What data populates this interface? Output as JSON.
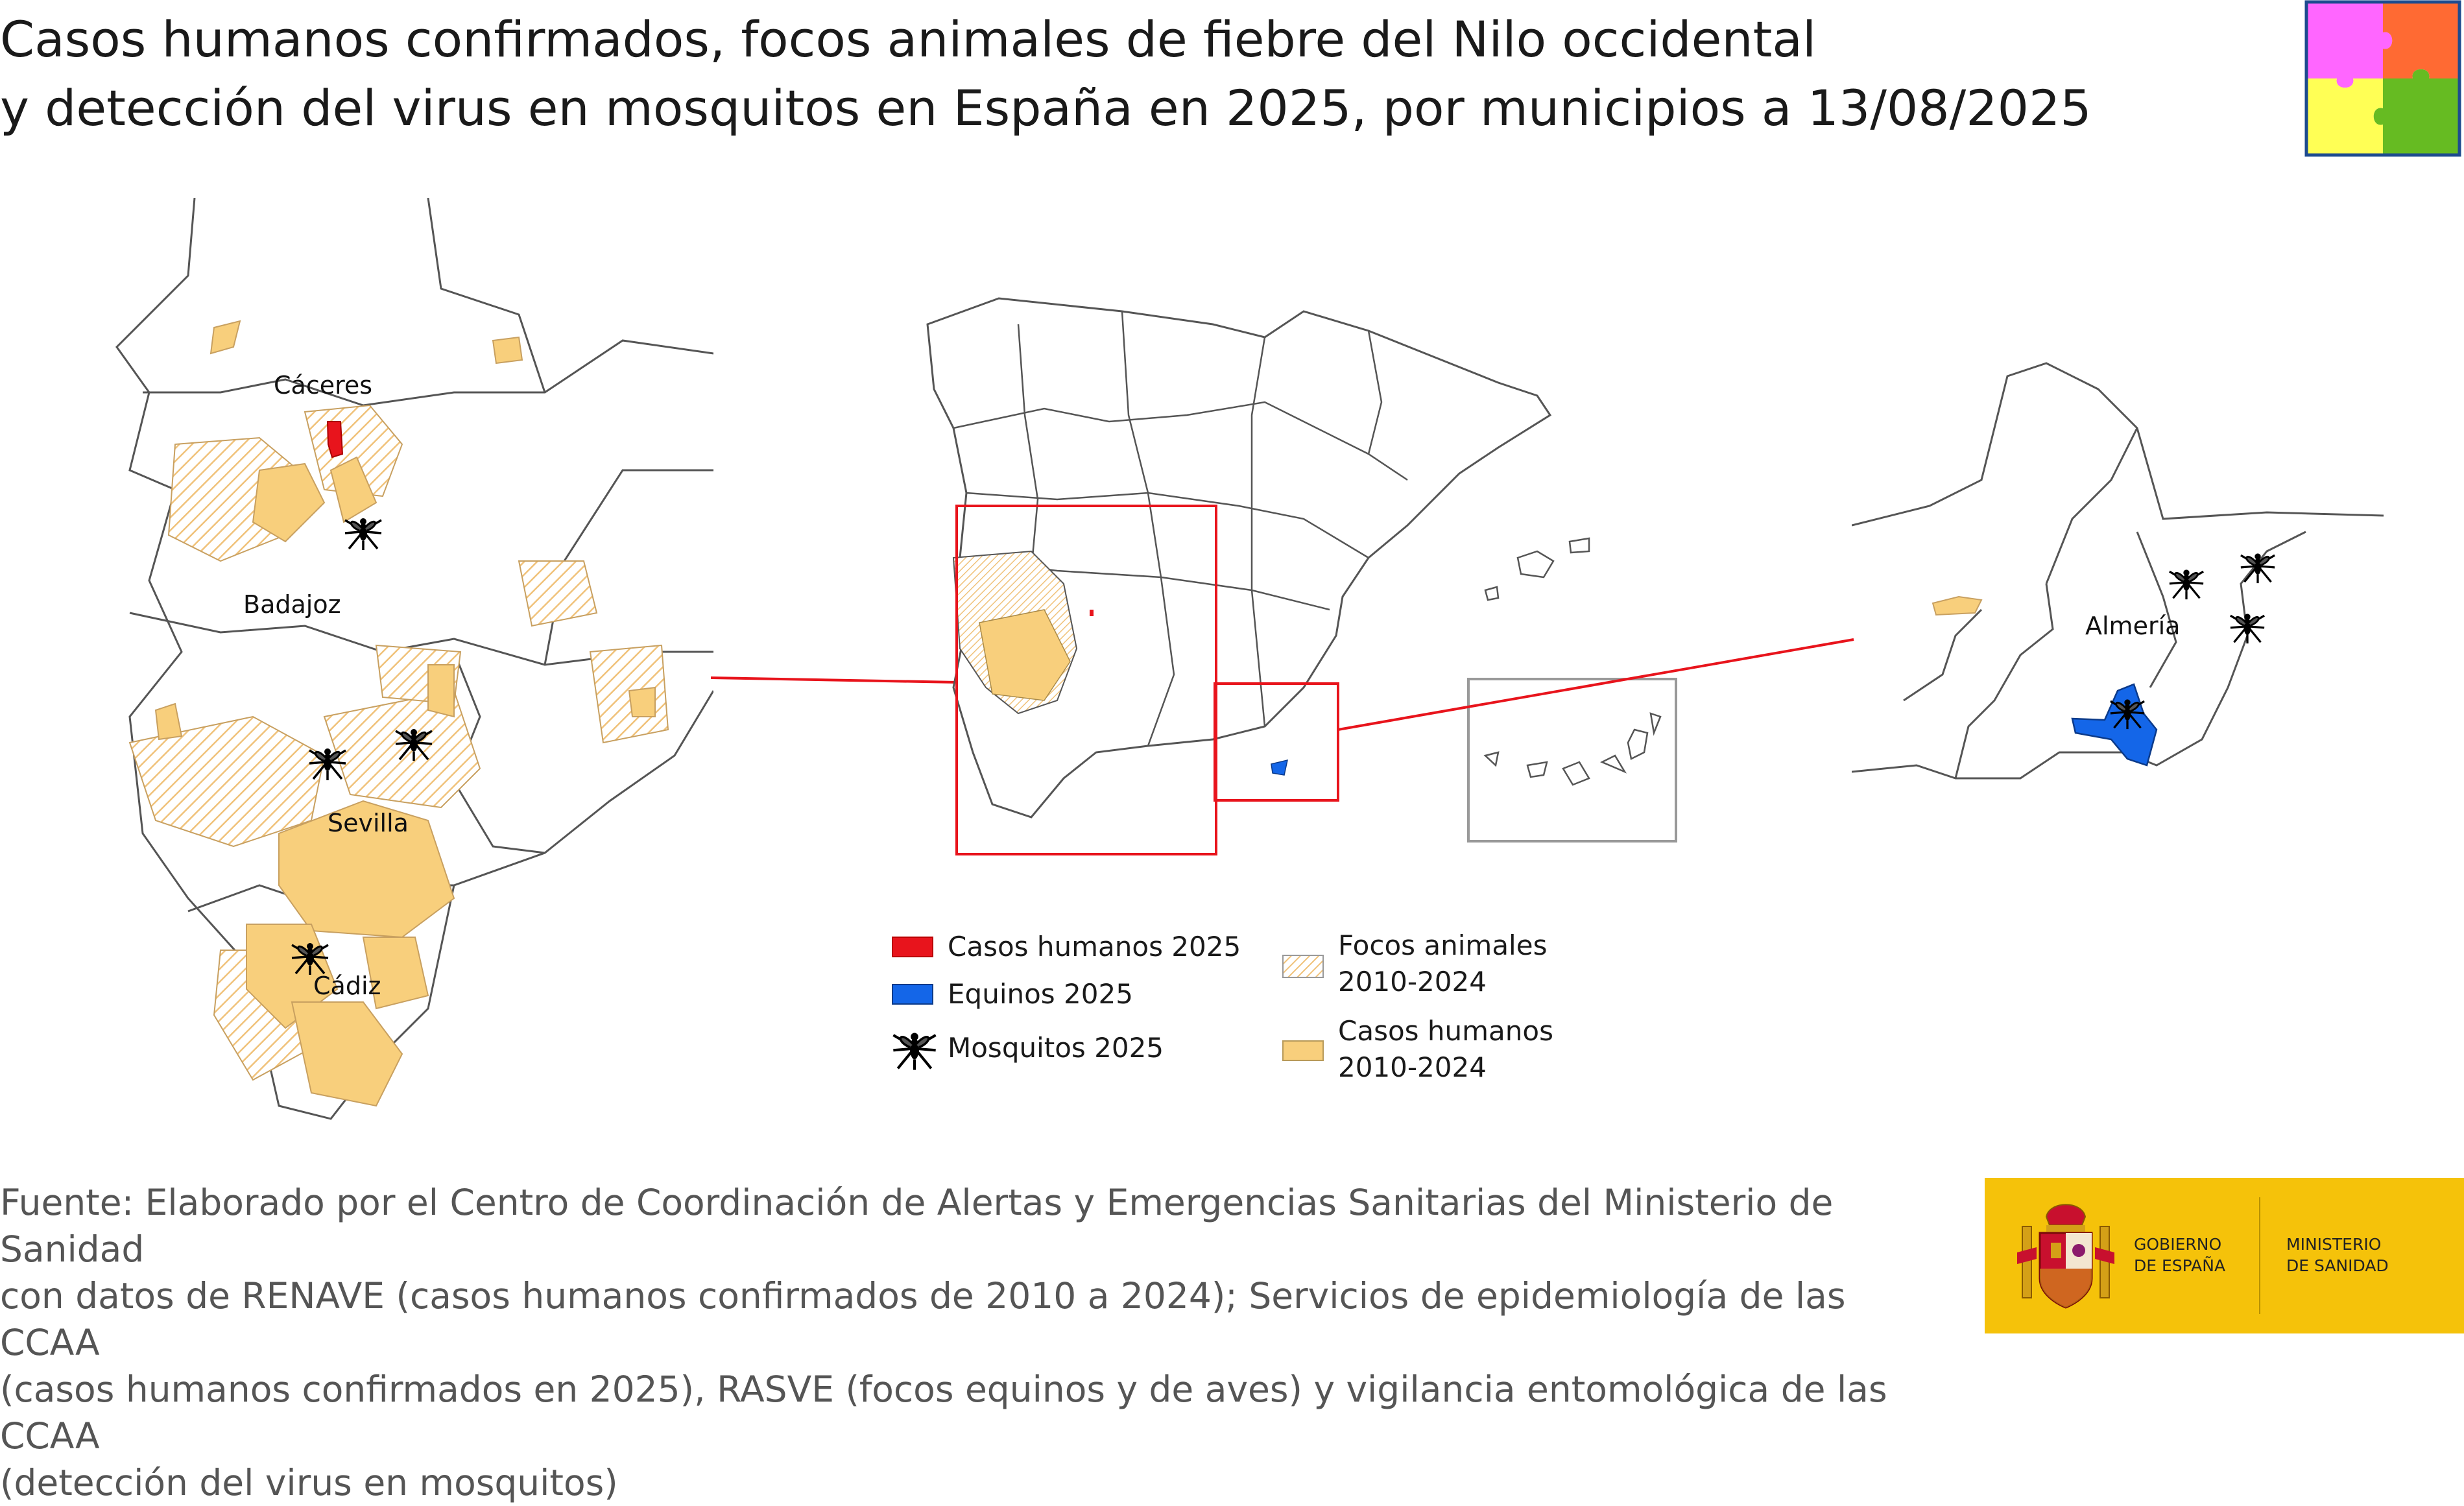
{
  "title": {
    "line1": "Casos humanos confirmados, focos animales de fiebre del Nilo occidental",
    "line2": "y detección del virus en mosquitos en España en 2025, por municipios a 13/08/2025"
  },
  "colors": {
    "human_2025": "#e8141c",
    "equine_2025": "#1466e8",
    "human_2010_2024": "#f8cf7c",
    "animal_hatch": "#f3cf8f",
    "inset_frame": "#e8141c",
    "canary_frame": "#999999",
    "puzzle": [
      "#ff66ff",
      "#ff6a33",
      "#ffff55",
      "#66bb22"
    ],
    "gov_yellow": "#f5c20a"
  },
  "map": {
    "labels": {
      "caceres": "Cáceres",
      "badajoz": "Badajoz",
      "sevilla": "Sevilla",
      "cadiz": "Cádiz",
      "almeria": "Almería"
    }
  },
  "legend": {
    "human_2025": "Casos humanos 2025",
    "equine_2025": "Equinos 2025",
    "mosquito_2025": "Mosquitos 2025",
    "animal_foci_line1": "Focos animales",
    "animal_foci_line2": "2010-2024",
    "human_cases_line1": "Casos humanos",
    "human_cases_line2": "2010-2024",
    "icons": [
      "mosquito-icon"
    ]
  },
  "source": {
    "line1": "Fuente: Elaborado por el Centro de Coordinación de Alertas y Emergencias Sanitarias del Ministerio de Sanidad",
    "line2": "con datos de RENAVE (casos humanos confirmados de 2010 a 2024); Servicios de epidemiología de las CCAA",
    "line3": "(casos humanos confirmados en 2025), RASVE (focos equinos y de aves) y vigilancia entomológica de las CCAA",
    "line4": "(detección del virus en mosquitos)"
  },
  "logo": {
    "line1": "GOBIERNO",
    "line2": "DE ESPAÑA",
    "line3": "MINISTERIO",
    "line4": "DE SANIDAD"
  }
}
